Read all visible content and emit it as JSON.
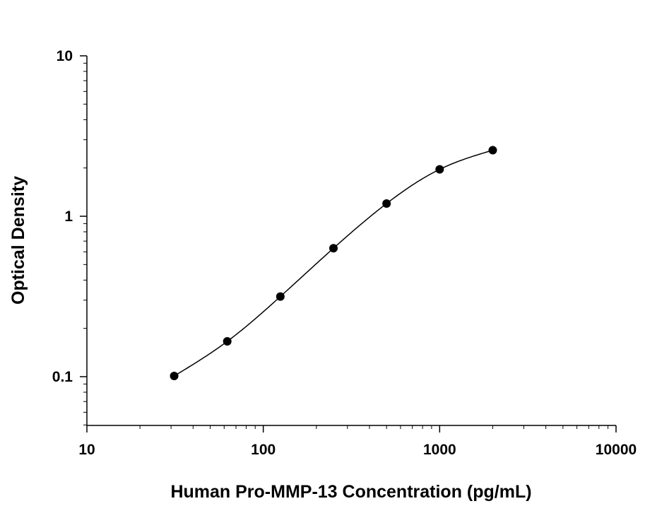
{
  "chart_data": {
    "type": "scatter",
    "title": "",
    "xlabel": "Human Pro-MMP-13 Concentration (pg/mL)",
    "ylabel": "Optical Density",
    "xscale": "log",
    "yscale": "log",
    "xlim": [
      10,
      10000
    ],
    "ylim": [
      0.05,
      10
    ],
    "x_ticks": [
      "10",
      "100",
      "1000",
      "10000"
    ],
    "y_ticks": [
      "0.1",
      "1",
      "10"
    ],
    "grid": false,
    "legend": "none",
    "fit_curve": true,
    "series": [
      {
        "x": [
          31.25,
          62.5,
          125,
          250,
          500,
          1000,
          2000
        ],
        "y": [
          0.101,
          0.166,
          0.316,
          0.632,
          1.2,
          1.96,
          2.58
        ]
      }
    ],
    "colors": {
      "line": "#000000",
      "marker": "#000000"
    }
  }
}
